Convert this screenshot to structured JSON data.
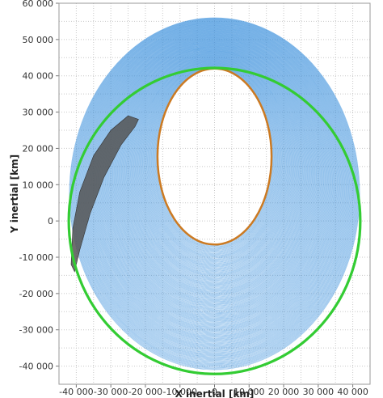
{
  "chart_data": {
    "type": "line",
    "xlabel": "X inertial [km]",
    "ylabel": "Y inertial [km]",
    "xlim": [
      -45000,
      45000
    ],
    "ylim": [
      -45000,
      60000
    ],
    "grid": true,
    "x_ticks": [
      -40000,
      -30000,
      -20000,
      -10000,
      0,
      10000,
      20000,
      30000,
      40000
    ],
    "x_tick_labels": [
      "-40 000",
      "-30 000",
      "-20 000",
      "-10 000",
      "0",
      "10 000",
      "20 000",
      "30 000",
      "40 000"
    ],
    "y_ticks": [
      60000,
      50000,
      40000,
      30000,
      20000,
      10000,
      0,
      -10000,
      -20000,
      -30000,
      -40000
    ],
    "y_tick_labels": [
      "60 000",
      "50 000",
      "40 000",
      "30 000",
      "20 000",
      "10 000",
      "0",
      "-10 000",
      "-20 000",
      "-30 000",
      "-40 000"
    ],
    "series": [
      {
        "kind": "trajectory-band",
        "color": "#3a8fdc",
        "inner_orbit": {
          "cx": 0,
          "cy": 17750,
          "rx": 16500,
          "ry": 24250
        },
        "outer_orbit": {
          "cx": 0,
          "cy": 7500,
          "rx": 42000,
          "ry": 48500
        }
      },
      {
        "kind": "circle",
        "color": "#33cc33",
        "cx": 0,
        "cy": 0,
        "r": 42164
      },
      {
        "kind": "ellipse",
        "color": "#cc7a22",
        "cx": 0,
        "cy": 17750,
        "rx": 16500,
        "ry": 24250
      },
      {
        "kind": "shadow-region",
        "color": "#555555",
        "points": [
          [
            -22000,
            28000
          ],
          [
            -25000,
            29000
          ],
          [
            -30000,
            25000
          ],
          [
            -35000,
            18000
          ],
          [
            -39000,
            8000
          ],
          [
            -41000,
            -2000
          ],
          [
            -41500,
            -12000
          ],
          [
            -40500,
            -14000
          ],
          [
            -39000,
            -8000
          ],
          [
            -36000,
            2000
          ],
          [
            -32000,
            12000
          ],
          [
            -27000,
            21000
          ],
          [
            -23000,
            26000
          ]
        ]
      }
    ]
  }
}
